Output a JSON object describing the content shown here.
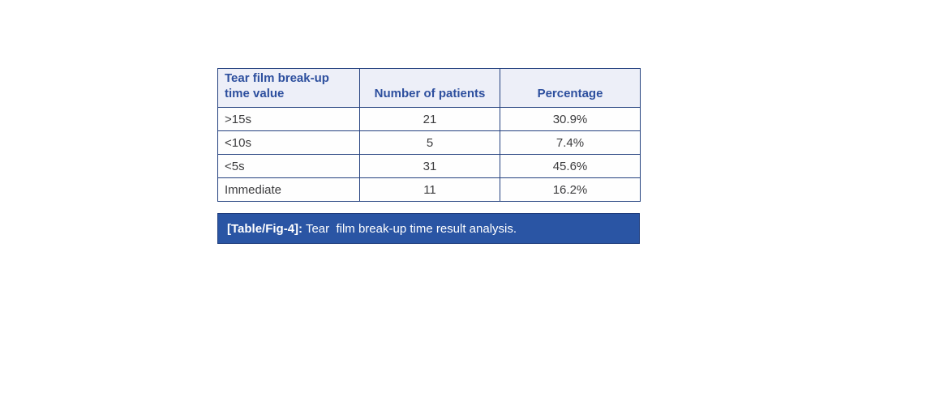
{
  "colors": {
    "page_background": "#ffffff",
    "table_border": "#24417f",
    "header_background": "#edeff8",
    "header_text": "#2d4f9e",
    "body_text": "#3c3c3e",
    "caption_background": "#2a55a4",
    "caption_text": "#ffffff"
  },
  "table": {
    "columns": [
      "Tear film break-up time value",
      "Number of patients",
      "Percentage"
    ],
    "rows": [
      {
        "value": ">15s",
        "patients": "21",
        "percentage": "30.9%"
      },
      {
        "value": "<10s",
        "patients": "5",
        "percentage": "7.4%"
      },
      {
        "value": "<5s",
        "patients": "31",
        "percentage": "45.6%"
      },
      {
        "value": "Immediate",
        "patients": "11",
        "percentage": "16.2%"
      }
    ]
  },
  "caption": {
    "label": "[Table/Fig-4]:",
    "text": " Tear  film break-up time result analysis."
  },
  "chart_data": {
    "type": "table",
    "title": "[Table/Fig-4]: Tear film break-up time result analysis.",
    "categories": [
      ">15s",
      "<10s",
      "<5s",
      "Immediate"
    ],
    "series": [
      {
        "name": "Number of patients",
        "values": [
          21,
          5,
          31,
          11
        ]
      },
      {
        "name": "Percentage",
        "values": [
          30.9,
          7.4,
          45.6,
          16.2
        ]
      }
    ]
  }
}
